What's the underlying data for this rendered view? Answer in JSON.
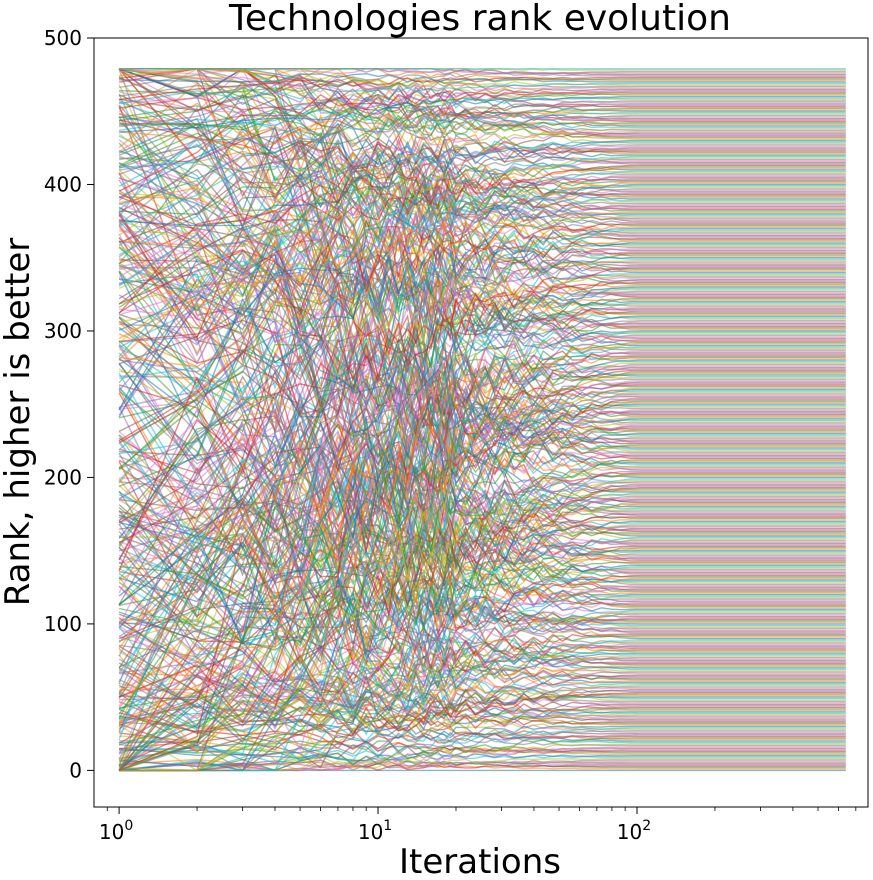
{
  "chart_data": {
    "type": "line",
    "title": "Technologies rank evolution",
    "xlabel": "Iterations",
    "ylabel": "Rank, higher is better",
    "xscale": "log",
    "xlim": [
      0.8,
      780
    ],
    "ylim": [
      -25,
      500
    ],
    "x_range": [
      1,
      640
    ],
    "n_series": 480,
    "series_alpha": 0.55,
    "grid": false,
    "legend": "none",
    "xtick_values": [
      1,
      10,
      100
    ],
    "xtick_labels": [
      {
        "base": "10",
        "exp": "0"
      },
      {
        "base": "10",
        "exp": "1"
      },
      {
        "base": "10",
        "exp": "2"
      }
    ],
    "ytick_values": [
      0,
      100,
      200,
      300,
      400,
      500
    ],
    "ytick_labels": [
      "0",
      "100",
      "200",
      "300",
      "400",
      "500"
    ],
    "colors": [
      "#1f77b4",
      "#ff7f0e",
      "#2ca02c",
      "#d62728",
      "#9467bd",
      "#8c564b",
      "#e377c2",
      "#7f7f7f",
      "#bcbd22",
      "#17becf"
    ]
  }
}
